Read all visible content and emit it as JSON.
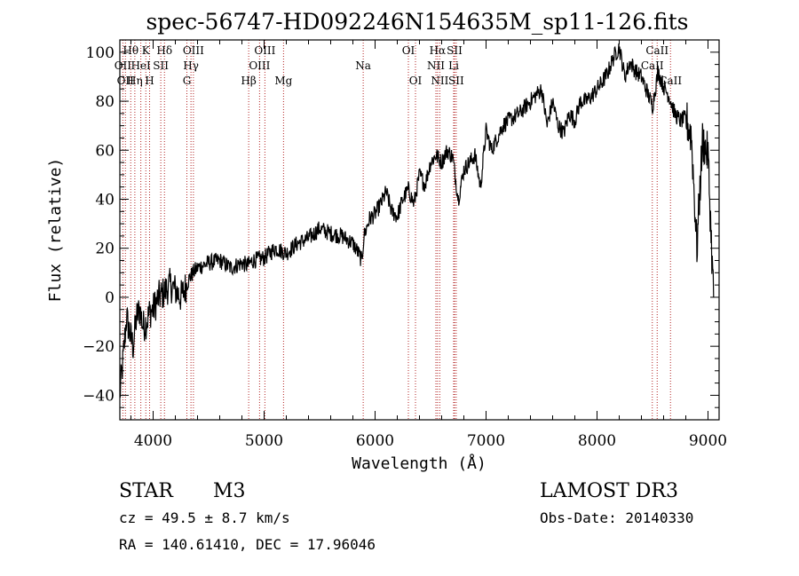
{
  "chart_data": {
    "type": "line",
    "title": "spec-56747-HD092246N154635M_sp11-126.fits",
    "xlabel": "Wavelength (Å)",
    "ylabel": "Flux (relative)",
    "xlim": [
      3700,
      9100
    ],
    "ylim": [
      -50,
      105
    ],
    "xticks": [
      4000,
      5000,
      6000,
      7000,
      8000,
      9000
    ],
    "yticks": [
      -40,
      -20,
      0,
      20,
      40,
      60,
      80,
      100
    ],
    "series": [
      {
        "name": "spectrum",
        "x": [
          3700,
          3730,
          3760,
          3790,
          3820,
          3850,
          3880,
          3910,
          3940,
          3970,
          4000,
          4050,
          4100,
          4150,
          4200,
          4250,
          4300,
          4330,
          4360,
          4400,
          4500,
          4600,
          4700,
          4800,
          4850,
          4900,
          5000,
          5100,
          5200,
          5300,
          5400,
          5500,
          5600,
          5700,
          5800,
          5850,
          5880,
          5900,
          5950,
          6000,
          6050,
          6100,
          6150,
          6200,
          6250,
          6300,
          6350,
          6400,
          6450,
          6500,
          6550,
          6600,
          6650,
          6700,
          6750,
          6800,
          6850,
          6900,
          6950,
          7000,
          7050,
          7100,
          7150,
          7200,
          7300,
          7400,
          7500,
          7550,
          7600,
          7650,
          7700,
          7750,
          7800,
          7850,
          7900,
          7950,
          8000,
          8050,
          8100,
          8150,
          8200,
          8250,
          8300,
          8350,
          8400,
          8450,
          8500,
          8550,
          8600,
          8650,
          8700,
          8750,
          8800,
          8850,
          8900,
          8950,
          9000,
          9050
        ],
        "values": [
          -40,
          -25,
          -8,
          -15,
          -20,
          -8,
          -5,
          -12,
          -10,
          -6,
          -5,
          0,
          2,
          5,
          3,
          0,
          5,
          8,
          10,
          12,
          14,
          15,
          12,
          14,
          13,
          15,
          16,
          20,
          18,
          22,
          24,
          28,
          26,
          25,
          22,
          18,
          15,
          25,
          32,
          34,
          38,
          43,
          35,
          33,
          40,
          44,
          38,
          50,
          46,
          55,
          58,
          55,
          60,
          57,
          40,
          52,
          55,
          58,
          45,
          68,
          60,
          65,
          70,
          72,
          75,
          80,
          85,
          70,
          80,
          70,
          67,
          75,
          72,
          80,
          80,
          82,
          85,
          88,
          92,
          98,
          102,
          90,
          96,
          92,
          90,
          84,
          78,
          92,
          86,
          82,
          75,
          72,
          73,
          66,
          20,
          64,
          58,
          0
        ]
      }
    ],
    "line_markers": [
      {
        "wavelength": 3727,
        "label": "OII",
        "row": 2
      },
      {
        "wavelength": 3750,
        "label": "OII",
        "row": 3
      },
      {
        "wavelength": 3798,
        "label": "Hθ",
        "row": 1
      },
      {
        "wavelength": 3835,
        "label": "Hη",
        "row": 3
      },
      {
        "wavelength": 3889,
        "label": "HeI",
        "row": 2
      },
      {
        "wavelength": 3934,
        "label": "K",
        "row": 1
      },
      {
        "wavelength": 3968,
        "label": "H",
        "row": 3
      },
      {
        "wavelength": 4069,
        "label": "SII",
        "row": 2
      },
      {
        "wavelength": 4102,
        "label": "Hδ",
        "row": 1
      },
      {
        "wavelength": 4304,
        "label": "G",
        "row": 3
      },
      {
        "wavelength": 4341,
        "label": "Hγ",
        "row": 2
      },
      {
        "wavelength": 4363,
        "label": "OIII",
        "row": 1
      },
      {
        "wavelength": 4861,
        "label": "Hβ",
        "row": 3
      },
      {
        "wavelength": 4959,
        "label": "OIII",
        "row": 2
      },
      {
        "wavelength": 5007,
        "label": "OIII",
        "row": 1
      },
      {
        "wavelength": 5175,
        "label": "Mg",
        "row": 3
      },
      {
        "wavelength": 5893,
        "label": "Na",
        "row": 2
      },
      {
        "wavelength": 6300,
        "label": "OI",
        "row": 1
      },
      {
        "wavelength": 6364,
        "label": "OI",
        "row": 3
      },
      {
        "wavelength": 6548,
        "label": "NII",
        "row": 2
      },
      {
        "wavelength": 6563,
        "label": "Hα",
        "row": 1
      },
      {
        "wavelength": 6583,
        "label": "NII",
        "row": 3
      },
      {
        "wavelength": 6708,
        "label": "Li",
        "row": 2
      },
      {
        "wavelength": 6716,
        "label": "SII",
        "row": 1
      },
      {
        "wavelength": 6731,
        "label": "SII",
        "row": 3
      },
      {
        "wavelength": 8498,
        "label": "CaII",
        "row": 2
      },
      {
        "wavelength": 8542,
        "label": "CaII",
        "row": 1
      },
      {
        "wavelength": 8662,
        "label": "CaII",
        "row": 3
      }
    ]
  },
  "footer": {
    "object_type": "STAR",
    "subclass": "M3",
    "survey": "LAMOST DR3",
    "redshift": "cz = 49.5 ± 8.7 km/s",
    "obs_date": "Obs-Date: 20140330",
    "coords": "RA = 140.61410, DEC =  17.96046"
  },
  "colors": {
    "axes": "#000000",
    "spectrum": "#000000",
    "line_marker": "#b22222",
    "background": "#ffffff"
  }
}
